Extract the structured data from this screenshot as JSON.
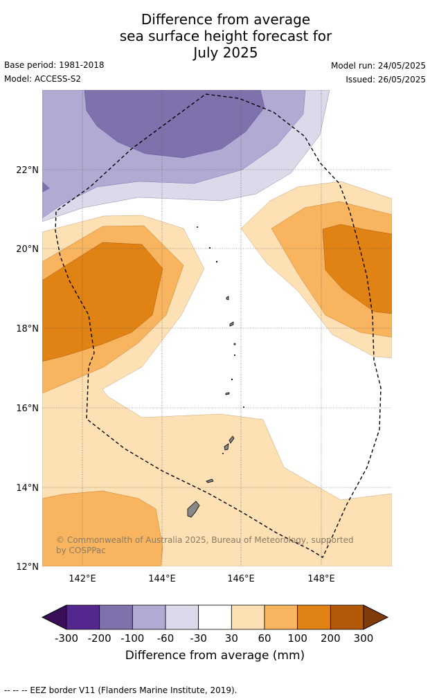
{
  "title": {
    "line1": "Difference from average",
    "line2": "sea surface height forecast for",
    "line3": "July 2025"
  },
  "meta": {
    "base_period": "Base period: 1981-2018",
    "model": "Model: ACCESS-S2",
    "model_run": "Model run: 24/05/2025",
    "issued": "Issued: 26/05/2025"
  },
  "map": {
    "lat_labels": [
      "22°N",
      "20°N",
      "18°N",
      "16°N",
      "14°N",
      "12°N"
    ],
    "lon_labels": [
      "142°E",
      "144°E",
      "146°E",
      "148°E"
    ],
    "lat_values": [
      22,
      20,
      18,
      16,
      14,
      12
    ],
    "lon_values": [
      142,
      144,
      146,
      148
    ],
    "extent": {
      "lon_min": 141,
      "lon_max": 149.8,
      "lat_min": 12,
      "lat_max": 24
    },
    "copyright_line1": "© Commonwealth of Australia 2025, Bureau of Meteorology, supported",
    "copyright_line2": "by COSPPac"
  },
  "colorbar": {
    "tick_labels": [
      "-300",
      "-200",
      "-100",
      "-60",
      "-30",
      "30",
      "60",
      "100",
      "200",
      "300"
    ],
    "colors": [
      "#3a0f58",
      "#54278f",
      "#7f71ab",
      "#b1abd3",
      "#dadaeb",
      "#ffffff",
      "#fde0b4",
      "#f9b45f",
      "#e08214",
      "#b35806",
      "#7f3b08"
    ],
    "label": "Difference from average (mm)"
  },
  "footnote": "-- -- -- EEZ border V11 (Flanders Marine Institute, 2019)."
}
